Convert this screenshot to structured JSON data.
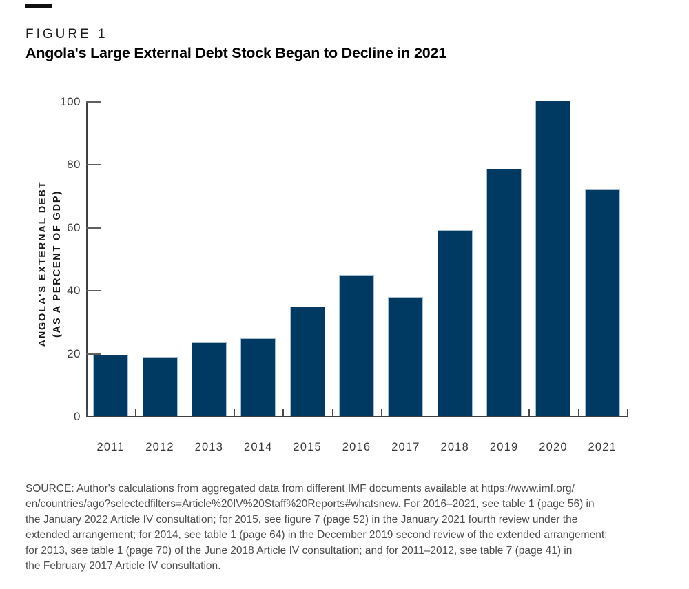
{
  "figure": {
    "label": "FIGURE 1",
    "title": "Angola's Large External Debt Stock Began to Decline in 2021",
    "source": {
      "lines": [
        "SOURCE: Author's calculations from aggregated data from different IMF documents available at https://www.imf.org/",
        "en/countries/ago?selectedfilters=Article%20IV%20Staff%20Reports#whatsnew. For 2016–2021, see table 1 (page 56) in",
        "the January 2022 Article IV consultation; for 2015, see figure 7 (page 52) in the January 2021 fourth review under the",
        "extended arrangement; for 2014, see table 1 (page 64) in the December 2019 second review of the extended arrangement;",
        "for 2013, see table 1 (page 70) of the June 2018 Article IV consultation; and for 2011–2012, see table 7 (page 41) in",
        "the February 2017 Article IV consultation."
      ]
    }
  },
  "chart_data": {
    "type": "bar",
    "title": "Angola's Large External Debt Stock Began to Decline in 2021",
    "categories": [
      "2011",
      "2012",
      "2013",
      "2014",
      "2015",
      "2016",
      "2017",
      "2018",
      "2019",
      "2020",
      "2021"
    ],
    "values": [
      19.7,
      19.0,
      23.7,
      24.9,
      35.0,
      45.0,
      38.1,
      59.3,
      78.7,
      100.5,
      72.3
    ],
    "xlabel": "",
    "ylabel_line1": "ANGOLA'S EXTERNAL DEBT",
    "ylabel_line2": "(AS A PERCENT OF GDP)",
    "ylim": [
      0,
      100
    ],
    "yticks": [
      0,
      20,
      40,
      60,
      80,
      100
    ],
    "grid": false,
    "legend": "none",
    "bar_color": "#003a63",
    "bar_border_color": "#a9bfd1",
    "axis_color": "#3f3f3f",
    "tick_label_color": "#383838"
  }
}
